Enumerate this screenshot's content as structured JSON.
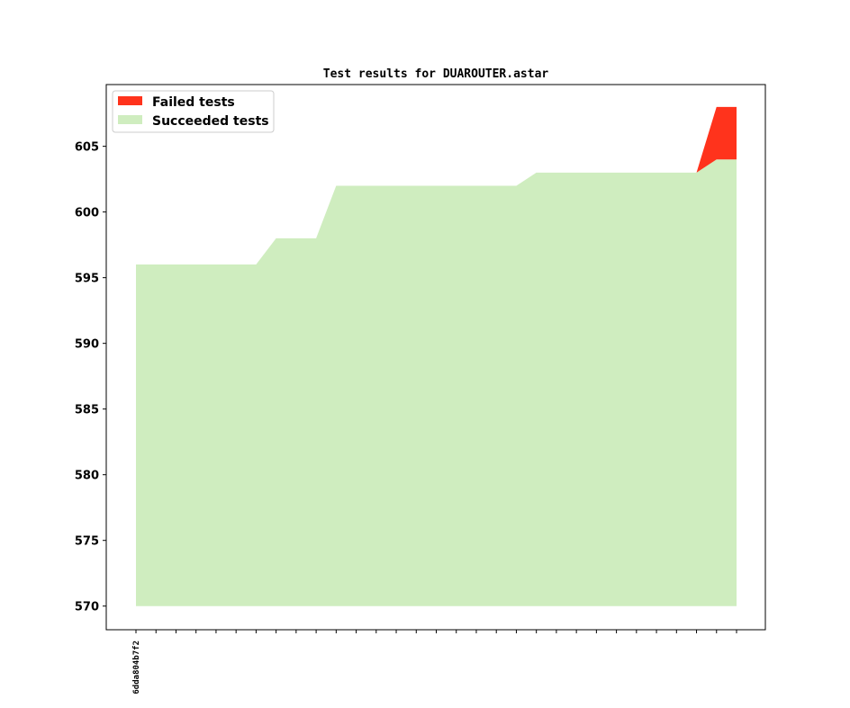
{
  "chart_data": {
    "type": "area",
    "title": "Test results for DUAROUTER.astar",
    "xlabel": "",
    "ylabel": "",
    "ylim": [
      568.2,
      609.7
    ],
    "yticks": [
      570,
      575,
      580,
      585,
      590,
      595,
      600,
      605
    ],
    "x_tick_count": 31,
    "x_tick_labels": [
      "6dda804b7f2"
    ],
    "baseline": 570,
    "x": [
      0,
      1,
      2,
      3,
      4,
      5,
      6,
      7,
      8,
      9,
      10,
      11,
      12,
      13,
      14,
      15,
      16,
      17,
      18,
      19,
      20,
      21,
      22,
      23,
      24,
      25,
      26,
      27,
      28,
      29,
      30
    ],
    "series": [
      {
        "name": "Succeeded tests",
        "color": "#cfedbf",
        "values": [
          596,
          596,
          596,
          596,
          596,
          596,
          596,
          598,
          598,
          598,
          602,
          602,
          602,
          602,
          602,
          602,
          602,
          602,
          602,
          602,
          603,
          603,
          603,
          603,
          603,
          603,
          603,
          603,
          603,
          604,
          604
        ]
      },
      {
        "name": "Failed tests",
        "color": "#ff331c",
        "values": [
          0,
          0,
          0,
          0,
          0,
          0,
          0,
          0,
          0,
          0,
          0,
          0,
          0,
          0,
          0,
          0,
          0,
          0,
          0,
          0,
          0,
          0,
          0,
          0,
          0,
          0,
          0,
          0,
          0,
          4,
          4
        ]
      }
    ],
    "legend": {
      "position": "top-left",
      "entries": [
        "Failed tests",
        "Succeeded tests"
      ]
    },
    "grid": false
  }
}
